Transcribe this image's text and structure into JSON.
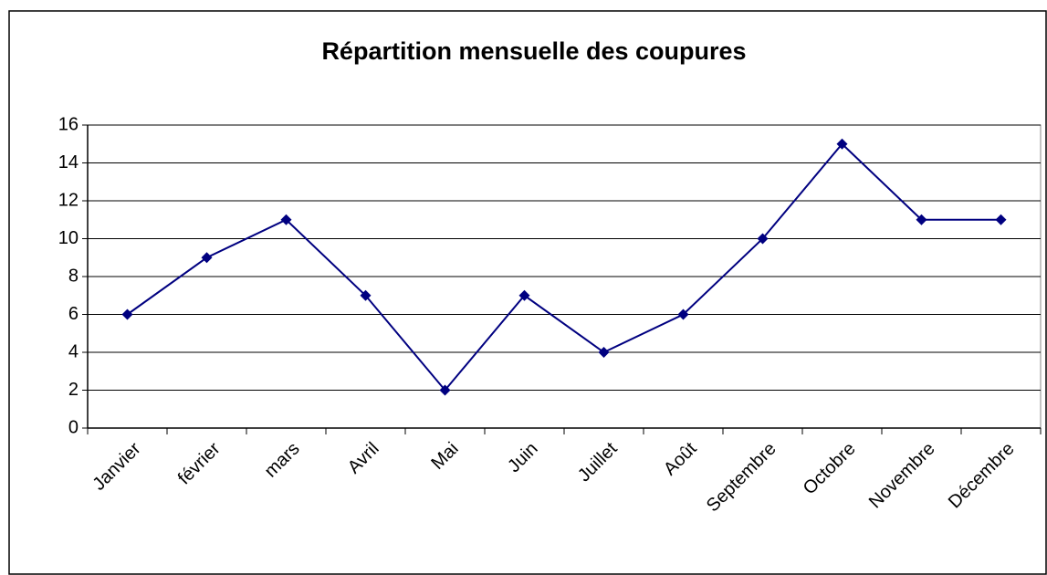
{
  "chart_data": {
    "type": "line",
    "title": "Répartition mensuelle des coupures",
    "categories": [
      "Janvier",
      "février",
      "mars",
      "Avril",
      "Mai",
      "Juin",
      "Juillet",
      "Août",
      "Septembre",
      "Octobre",
      "Novembre",
      "Décembre"
    ],
    "values": [
      6,
      9,
      11,
      7,
      2,
      7,
      4,
      6,
      10,
      15,
      11,
      11
    ],
    "color": "#000080",
    "ylim": [
      0,
      16
    ],
    "yticks": [
      0,
      2,
      4,
      6,
      8,
      10,
      12,
      14,
      16
    ],
    "grid": true
  }
}
